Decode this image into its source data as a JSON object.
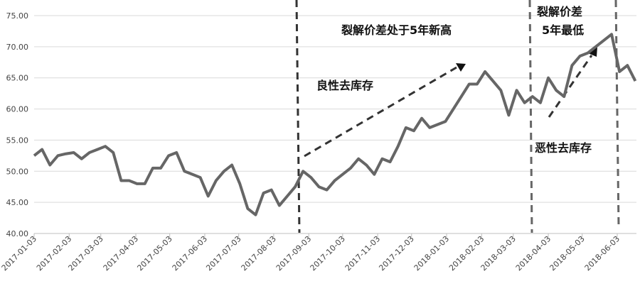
{
  "chart_data": {
    "type": "line",
    "x": [
      "2017-01-03",
      "2017-01-10",
      "2017-01-17",
      "2017-01-24",
      "2017-01-31",
      "2017-02-07",
      "2017-02-14",
      "2017-02-21",
      "2017-02-28",
      "2017-03-07",
      "2017-03-14",
      "2017-03-21",
      "2017-03-28",
      "2017-04-04",
      "2017-04-11",
      "2017-04-18",
      "2017-04-25",
      "2017-05-02",
      "2017-05-09",
      "2017-05-16",
      "2017-05-23",
      "2017-05-30",
      "2017-06-06",
      "2017-06-13",
      "2017-06-20",
      "2017-06-27",
      "2017-07-04",
      "2017-07-11",
      "2017-07-18",
      "2017-07-25",
      "2017-08-01",
      "2017-08-08",
      "2017-08-15",
      "2017-08-22",
      "2017-08-29",
      "2017-09-05",
      "2017-09-12",
      "2017-09-19",
      "2017-09-26",
      "2017-10-03",
      "2017-10-10",
      "2017-10-17",
      "2017-10-24",
      "2017-10-31",
      "2017-11-07",
      "2017-11-14",
      "2017-11-21",
      "2017-11-28",
      "2017-12-05",
      "2017-12-12",
      "2017-12-19",
      "2017-12-26",
      "2018-01-02",
      "2018-01-09",
      "2018-01-16",
      "2018-01-23",
      "2018-01-30",
      "2018-02-06",
      "2018-02-13",
      "2018-02-20",
      "2018-02-27",
      "2018-03-06",
      "2018-03-13",
      "2018-03-20",
      "2018-03-27",
      "2018-04-03",
      "2018-04-10",
      "2018-04-17",
      "2018-04-24",
      "2018-05-01",
      "2018-05-08",
      "2018-05-15",
      "2018-05-22",
      "2018-05-29",
      "2018-06-05",
      "2018-06-12",
      "2018-06-19"
    ],
    "series": [
      {
        "color": "#666666",
        "values": [
          52.5,
          53.5,
          51,
          52.5,
          52.8,
          53,
          52,
          53,
          53.5,
          54,
          53,
          48.5,
          48.5,
          48,
          48,
          50.5,
          50.5,
          52.5,
          53,
          50,
          49.5,
          49,
          46,
          48.5,
          50,
          51,
          48,
          44,
          43,
          46.5,
          47,
          44.5,
          46,
          47.5,
          50,
          49,
          47.5,
          47,
          48.5,
          49.5,
          50.5,
          52,
          51,
          49.5,
          52,
          51.5,
          54,
          57,
          56.5,
          58.5,
          57,
          57.5,
          58,
          60,
          62,
          64,
          64,
          66,
          64.5,
          63,
          59,
          63,
          61,
          62,
          61,
          65,
          63,
          62,
          67,
          68.5,
          69,
          70,
          71,
          72,
          66,
          67,
          64.5
        ]
      }
    ],
    "xlim": [
      "2017-01-03",
      "2018-06-20"
    ],
    "xticks": [
      "2017-01-03",
      "2017-02-03",
      "2017-03-03",
      "2017-04-03",
      "2017-05-03",
      "2017-06-03",
      "2017-07-03",
      "2017-08-03",
      "2017-09-03",
      "2017-10-03",
      "2017-11-03",
      "2017-12-03",
      "2018-01-03",
      "2018-02-03",
      "2018-03-03",
      "2018-04-03",
      "2018-05-03",
      "2018-06-03"
    ],
    "ylim": [
      40,
      75
    ],
    "yticks": [
      {
        "value": 40,
        "label": "40.00"
      },
      {
        "value": 45,
        "label": "45.00"
      },
      {
        "value": 50,
        "label": "50.00"
      },
      {
        "value": 55,
        "label": "55.00"
      },
      {
        "value": 60,
        "label": "60.00"
      },
      {
        "value": 65,
        "label": "65.00"
      },
      {
        "value": 70,
        "label": "70.00"
      },
      {
        "value": 75,
        "label": "75.00"
      }
    ],
    "grid": true,
    "annotations": [
      "裂解价差处于5年新高",
      "良性去库存",
      "裂解价差",
      "5年最低",
      "恶性去库存"
    ]
  }
}
